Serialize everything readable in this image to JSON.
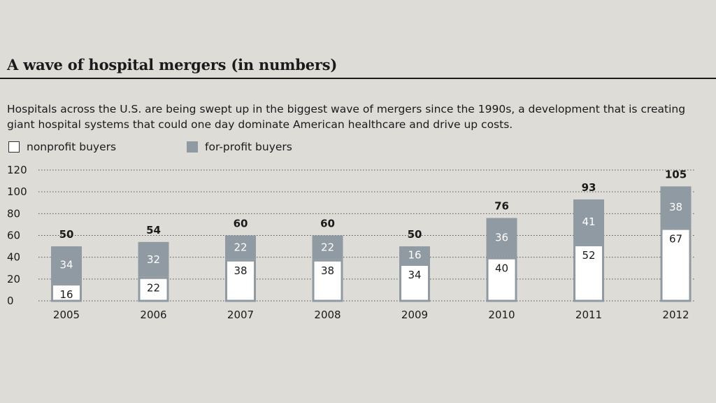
{
  "title": "A wave of hospital mergers (in numbers)",
  "subtitle": "Hospitals across the U.S. are being swept up in the biggest wave of mergers since the 1990s, a development that is creating giant hospital systems that could one day dominate American healthcare and drive up costs.",
  "legend": {
    "nonprofit": "nonprofit buyers",
    "forprofit": "for-profit buyers"
  },
  "colors": {
    "nonprofit": "#ffffff",
    "forprofit": "#8f9aa3",
    "background": "#dddcd7"
  },
  "chart_data": {
    "type": "bar",
    "stacked": true,
    "categories": [
      "2005",
      "2006",
      "2007",
      "2008",
      "2009",
      "2010",
      "2011",
      "2012"
    ],
    "series": [
      {
        "name": "nonprofit buyers",
        "values": [
          16,
          22,
          38,
          38,
          34,
          40,
          52,
          67
        ]
      },
      {
        "name": "for-profit buyers",
        "values": [
          34,
          32,
          22,
          22,
          16,
          36,
          41,
          38
        ]
      }
    ],
    "totals": [
      50,
      54,
      60,
      60,
      50,
      76,
      93,
      105
    ],
    "ylim": [
      0,
      120
    ],
    "yticks": [
      0,
      20,
      40,
      60,
      80,
      100,
      120
    ],
    "grid": true,
    "legend_position": "top-left"
  }
}
